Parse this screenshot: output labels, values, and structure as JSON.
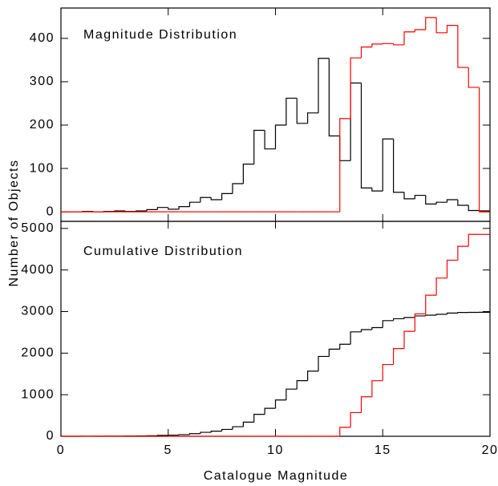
{
  "chart_data": [
    {
      "type": "histogram",
      "title": "Magnitude Distribution",
      "ylabel": "Number of Objects",
      "bins": [
        0,
        0.5,
        1,
        1.5,
        2,
        2.5,
        3,
        3.5,
        4,
        4.5,
        5,
        5.5,
        6,
        6.5,
        7,
        7.5,
        8,
        8.5,
        9,
        9.5,
        10,
        10.5,
        11,
        11.5,
        12,
        12.5,
        13,
        13.5,
        14,
        14.5,
        15,
        15.5,
        16,
        16.5,
        17,
        17.5,
        18,
        18.5,
        19,
        19.5,
        20
      ],
      "series": [
        {
          "color": "#000000",
          "values": [
            0,
            0,
            1,
            0,
            1,
            2,
            1,
            2,
            5,
            10,
            6,
            12,
            22,
            33,
            28,
            42,
            65,
            110,
            188,
            145,
            200,
            262,
            204,
            228,
            354,
            175,
            118,
            297,
            55,
            48,
            168,
            45,
            30,
            38,
            18,
            22,
            28,
            15,
            3,
            2
          ]
        },
        {
          "color": "#ff0000",
          "values": [
            0,
            0,
            0,
            0,
            0,
            0,
            0,
            0,
            0,
            0,
            0,
            0,
            0,
            0,
            0,
            0,
            0,
            0,
            0,
            0,
            0,
            0,
            0,
            0,
            0,
            0,
            215,
            355,
            380,
            387,
            388,
            385,
            415,
            420,
            448,
            413,
            430,
            333,
            287,
            0
          ]
        }
      ],
      "xlim": [
        0,
        20
      ],
      "ylim": [
        -22,
        470
      ],
      "yticks": [
        0,
        100,
        200,
        300,
        400
      ]
    },
    {
      "type": "histogram",
      "title": "Cumulative Distribution",
      "xlabel": "Catalogue Magnitude",
      "bins": [
        0,
        0.5,
        1,
        1.5,
        2,
        2.5,
        3,
        3.5,
        4,
        4.5,
        5,
        5.5,
        6,
        6.5,
        7,
        7.5,
        8,
        8.5,
        9,
        9.5,
        10,
        10.5,
        11,
        11.5,
        12,
        12.5,
        13,
        13.5,
        14,
        14.5,
        15,
        15.5,
        16,
        16.5,
        17,
        17.5,
        18,
        18.5,
        19,
        19.5,
        20
      ],
      "series": [
        {
          "color": "#000000",
          "values": [
            0,
            0,
            1,
            1,
            2,
            4,
            5,
            7,
            12,
            22,
            28,
            40,
            62,
            95,
            123,
            165,
            230,
            340,
            528,
            673,
            873,
            1135,
            1339,
            1567,
            1921,
            2096,
            2214,
            2511,
            2566,
            2614,
            2782,
            2827,
            2857,
            2895,
            2913,
            2935,
            2963,
            2978,
            2981,
            2983
          ]
        },
        {
          "color": "#ff0000",
          "values": [
            0,
            0,
            0,
            0,
            0,
            0,
            0,
            0,
            0,
            0,
            0,
            0,
            0,
            0,
            0,
            0,
            0,
            0,
            0,
            0,
            0,
            0,
            0,
            0,
            0,
            0,
            215,
            570,
            950,
            1337,
            1725,
            2110,
            2525,
            2945,
            3393,
            3806,
            4236,
            4569,
            4856,
            4856
          ]
        }
      ],
      "xlim": [
        0,
        20
      ],
      "ylim": [
        0,
        5170
      ],
      "xticks": [
        0,
        5,
        10,
        15,
        20
      ],
      "yticks": [
        0,
        1000,
        2000,
        3000,
        4000,
        5000
      ]
    }
  ]
}
